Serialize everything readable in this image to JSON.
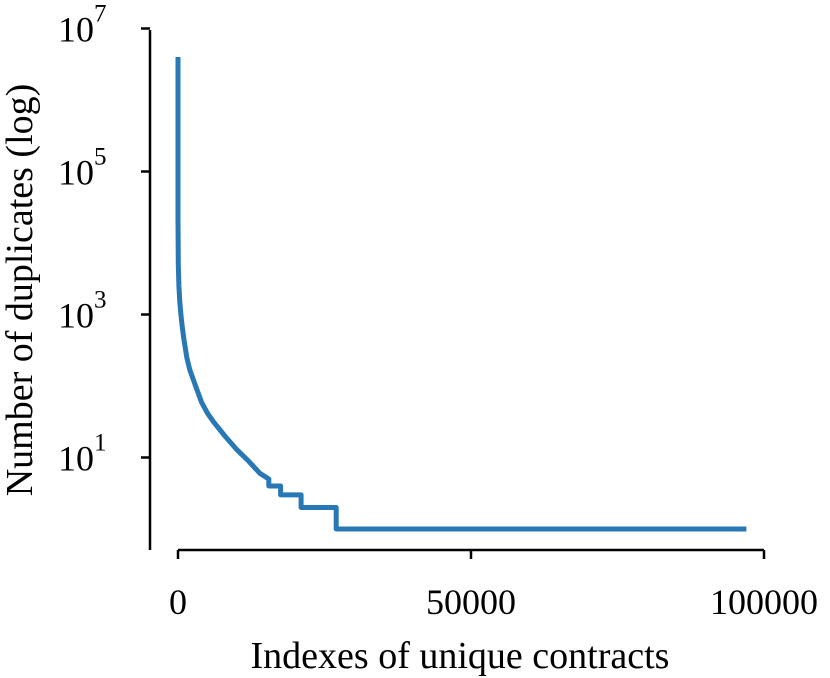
{
  "chart_data": {
    "type": "line",
    "title": "",
    "xlabel": "Indexes of unique contracts",
    "ylabel": "Number of duplicates (log)",
    "xlim": [
      -5000,
      100000
    ],
    "ylim": [
      0.5,
      10000000
    ],
    "yscale": "log",
    "grid": false,
    "x_ticks": [
      {
        "value": 0,
        "label": "0"
      },
      {
        "value": 50000,
        "label": "50000"
      },
      {
        "value": 100000,
        "label": "100000"
      }
    ],
    "y_ticks": [
      {
        "value": 10,
        "base": "10",
        "exp": "1"
      },
      {
        "value": 1000,
        "base": "10",
        "exp": "3"
      },
      {
        "value": 100000,
        "base": "10",
        "exp": "5"
      },
      {
        "value": 10000000,
        "base": "10",
        "exp": "7"
      }
    ],
    "series": [
      {
        "color": "#2878b5",
        "x": [
          0,
          0,
          50,
          150,
          300,
          500,
          700,
          1000,
          1500,
          2000,
          3000,
          4000,
          5000,
          6000,
          8000,
          10000,
          12000,
          14000,
          15500,
          15500,
          17500,
          17500,
          21000,
          21000,
          27000,
          27000,
          40000,
          60000,
          80000,
          97000
        ],
        "y": [
          4000000,
          20000,
          5000,
          2500,
          1500,
          1000,
          700,
          450,
          250,
          170,
          100,
          60,
          42,
          32,
          20,
          13,
          9,
          6,
          5,
          4,
          4,
          3,
          3,
          2,
          2,
          1,
          1,
          1,
          1,
          1
        ]
      }
    ]
  }
}
